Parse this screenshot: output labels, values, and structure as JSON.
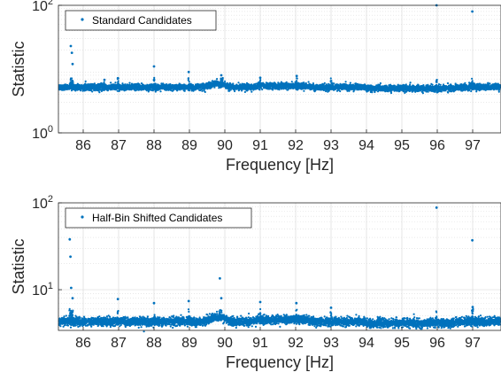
{
  "chart_data": [
    {
      "type": "scatter",
      "xlabel": "Frequency [Hz]",
      "ylabel": "Statistic",
      "yscale": "log",
      "xlim": [
        85.3,
        97.8
      ],
      "ylim": [
        1,
        100
      ],
      "xticks": [
        "86",
        "87",
        "88",
        "89",
        "90",
        "91",
        "92",
        "93",
        "94",
        "95",
        "96",
        "97"
      ],
      "yticks": [
        {
          "value": 1,
          "base": "10",
          "exp": "0"
        },
        {
          "value": 100,
          "base": "10",
          "exp": "2"
        }
      ],
      "grid": true,
      "legend": {
        "position": "top-left",
        "entries": [
          "Standard Candidates"
        ]
      },
      "series": [
        {
          "name": "Standard Candidates",
          "color": "#0072BD",
          "baseline_level": 5.2,
          "peaks": [
            {
              "x": 85.65,
              "y": 23.0
            },
            {
              "x": 85.68,
              "y": 18.0
            },
            {
              "x": 85.7,
              "y": 12.0
            },
            {
              "x": 86.6,
              "y": 6.8
            },
            {
              "x": 86.98,
              "y": 7.2
            },
            {
              "x": 88.0,
              "y": 11.0
            },
            {
              "x": 88.98,
              "y": 9.0
            },
            {
              "x": 89.9,
              "y": 8.0
            },
            {
              "x": 89.93,
              "y": 6.8
            },
            {
              "x": 91.0,
              "y": 7.3
            },
            {
              "x": 92.03,
              "y": 7.8
            },
            {
              "x": 93.0,
              "y": 6.5
            },
            {
              "x": 95.98,
              "y": 100.0
            },
            {
              "x": 96.99,
              "y": 80.0
            }
          ]
        }
      ]
    },
    {
      "type": "scatter",
      "xlabel": "Frequency [Hz]",
      "ylabel": "Statistic",
      "yscale": "log",
      "xlim": [
        85.3,
        97.8
      ],
      "ylim": [
        3.4,
        100
      ],
      "xticks": [
        "86",
        "87",
        "88",
        "89",
        "90",
        "91",
        "92",
        "93",
        "94",
        "95",
        "96",
        "97"
      ],
      "yticks": [
        {
          "value": 10,
          "base": "10",
          "exp": "1"
        },
        {
          "value": 100,
          "base": "10",
          "exp": "2"
        }
      ],
      "grid": true,
      "legend": {
        "position": "top-left",
        "entries": [
          "Half-Bin Shifted Candidates"
        ]
      },
      "series": [
        {
          "name": "Half-Bin Shifted Candidates",
          "color": "#0072BD",
          "baseline_level": 4.3,
          "peaks": [
            {
              "x": 85.62,
              "y": 38.0
            },
            {
              "x": 85.64,
              "y": 24.0
            },
            {
              "x": 85.66,
              "y": 10.5
            },
            {
              "x": 85.7,
              "y": 8.0
            },
            {
              "x": 86.98,
              "y": 7.8
            },
            {
              "x": 88.0,
              "y": 7.0
            },
            {
              "x": 88.98,
              "y": 7.4
            },
            {
              "x": 89.86,
              "y": 13.5
            },
            {
              "x": 89.9,
              "y": 8.0
            },
            {
              "x": 91.0,
              "y": 7.2
            },
            {
              "x": 92.02,
              "y": 7.0
            },
            {
              "x": 93.0,
              "y": 6.2
            },
            {
              "x": 95.98,
              "y": 88.0
            },
            {
              "x": 96.99,
              "y": 37.0
            },
            {
              "x": 97.0,
              "y": 6.3
            }
          ]
        }
      ]
    }
  ]
}
